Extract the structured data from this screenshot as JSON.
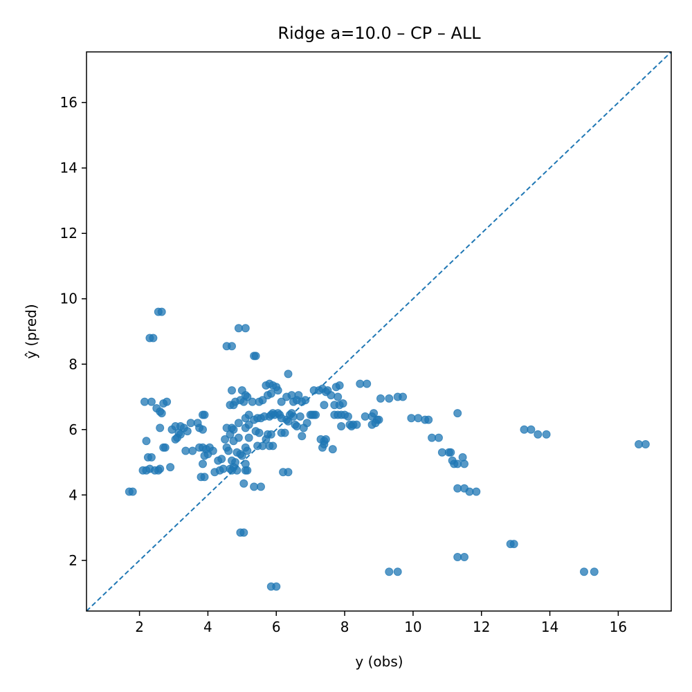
{
  "chart_data": {
    "type": "scatter",
    "title": "Ridge a=10.0 – CP – ALL",
    "xlabel": "y (obs)",
    "ylabel": "ŷ (pred)",
    "xlim": [
      0.45,
      17.55
    ],
    "ylim": [
      0.45,
      17.55
    ],
    "xticks": [
      2,
      4,
      6,
      8,
      10,
      12,
      14,
      16
    ],
    "yticks": [
      2,
      4,
      6,
      8,
      10,
      12,
      14,
      16
    ],
    "grid": false,
    "legend": "none",
    "point_color": "#1f77b4",
    "point_opacity": 0.75,
    "identity_line": {
      "style": "dashed",
      "color": "#1f77b4",
      "from": [
        0.45,
        0.45
      ],
      "to": [
        17.55,
        17.55
      ]
    },
    "points": [
      [
        1.7,
        4.1
      ],
      [
        1.8,
        4.1
      ],
      [
        2.1,
        4.75
      ],
      [
        2.2,
        4.75
      ],
      [
        2.3,
        4.8
      ],
      [
        2.45,
        4.75
      ],
      [
        2.55,
        4.75
      ],
      [
        2.6,
        4.8
      ],
      [
        2.2,
        5.65
      ],
      [
        2.25,
        5.15
      ],
      [
        2.35,
        5.15
      ],
      [
        2.15,
        6.85
      ],
      [
        2.35,
        6.85
      ],
      [
        2.5,
        6.65
      ],
      [
        2.6,
        6.55
      ],
      [
        2.65,
        6.5
      ],
      [
        2.7,
        6.8
      ],
      [
        2.8,
        6.85
      ],
      [
        2.6,
        6.05
      ],
      [
        2.7,
        5.45
      ],
      [
        2.75,
        5.45
      ],
      [
        2.9,
        4.85
      ],
      [
        2.3,
        8.8
      ],
      [
        2.4,
        8.8
      ],
      [
        2.55,
        9.6
      ],
      [
        2.65,
        9.6
      ],
      [
        2.95,
        6.0
      ],
      [
        3.05,
        5.7
      ],
      [
        3.1,
        5.75
      ],
      [
        3.15,
        5.9
      ],
      [
        3.05,
        6.1
      ],
      [
        3.2,
        6.1
      ],
      [
        3.2,
        5.85
      ],
      [
        3.3,
        6.05
      ],
      [
        3.4,
        5.95
      ],
      [
        3.35,
        5.35
      ],
      [
        3.55,
        5.35
      ],
      [
        3.5,
        6.2
      ],
      [
        3.7,
        6.2
      ],
      [
        3.75,
        6.05
      ],
      [
        3.85,
        6.0
      ],
      [
        3.75,
        5.45
      ],
      [
        3.85,
        5.45
      ],
      [
        3.95,
        5.4
      ],
      [
        4.05,
        5.45
      ],
      [
        3.9,
        5.2
      ],
      [
        4.0,
        5.25
      ],
      [
        3.85,
        4.95
      ],
      [
        4.15,
        5.35
      ],
      [
        3.8,
        4.55
      ],
      [
        3.9,
        4.55
      ],
      [
        3.85,
        6.45
      ],
      [
        3.9,
        6.45
      ],
      [
        4.2,
        4.7
      ],
      [
        4.35,
        4.75
      ],
      [
        4.3,
        5.05
      ],
      [
        4.4,
        5.1
      ],
      [
        4.45,
        4.8
      ],
      [
        4.5,
        5.7
      ],
      [
        4.55,
        6.05
      ],
      [
        4.55,
        5.45
      ],
      [
        4.6,
        5.35
      ],
      [
        4.7,
        5.05
      ],
      [
        4.8,
        5.0
      ],
      [
        4.65,
        4.8
      ],
      [
        4.75,
        4.85
      ],
      [
        4.85,
        4.75
      ],
      [
        4.7,
        4.75
      ],
      [
        4.85,
        5.3
      ],
      [
        4.95,
        5.25
      ],
      [
        4.75,
        5.65
      ],
      [
        4.9,
        5.75
      ],
      [
        4.65,
        5.85
      ],
      [
        4.7,
        6.05
      ],
      [
        4.75,
        6.0
      ],
      [
        4.65,
        6.75
      ],
      [
        4.75,
        6.75
      ],
      [
        4.8,
        6.85
      ],
      [
        4.95,
        6.9
      ],
      [
        4.7,
        7.2
      ],
      [
        5.0,
        7.2
      ],
      [
        4.9,
        6.2
      ],
      [
        4.55,
        8.55
      ],
      [
        4.7,
        8.55
      ],
      [
        4.9,
        9.1
      ],
      [
        5.1,
        9.1
      ],
      [
        4.95,
        2.85
      ],
      [
        5.05,
        2.85
      ],
      [
        5.05,
        4.35
      ],
      [
        5.1,
        4.75
      ],
      [
        5.15,
        4.75
      ],
      [
        5.1,
        4.95
      ],
      [
        5.0,
        5.2
      ],
      [
        5.1,
        5.45
      ],
      [
        5.15,
        5.35
      ],
      [
        5.2,
        5.75
      ],
      [
        5.1,
        6.05
      ],
      [
        5.2,
        6.15
      ],
      [
        5.1,
        6.35
      ],
      [
        5.2,
        6.45
      ],
      [
        5.05,
        6.85
      ],
      [
        5.1,
        7.05
      ],
      [
        5.15,
        7.0
      ],
      [
        5.3,
        6.85
      ],
      [
        5.35,
        6.3
      ],
      [
        5.35,
        8.25
      ],
      [
        5.4,
        8.25
      ],
      [
        5.35,
        4.25
      ],
      [
        5.55,
        4.25
      ],
      [
        5.45,
        5.5
      ],
      [
        5.6,
        5.5
      ],
      [
        5.4,
        5.95
      ],
      [
        5.5,
        5.9
      ],
      [
        5.45,
        6.35
      ],
      [
        5.55,
        6.35
      ],
      [
        5.65,
        6.4
      ],
      [
        5.5,
        6.85
      ],
      [
        5.6,
        6.9
      ],
      [
        5.7,
        5.7
      ],
      [
        5.75,
        5.85
      ],
      [
        5.85,
        5.85
      ],
      [
        5.8,
        5.5
      ],
      [
        5.9,
        5.5
      ],
      [
        5.8,
        6.4
      ],
      [
        5.85,
        6.45
      ],
      [
        5.9,
        6.5
      ],
      [
        5.75,
        7.05
      ],
      [
        5.85,
        7.1
      ],
      [
        5.7,
        7.35
      ],
      [
        5.8,
        7.4
      ],
      [
        5.9,
        7.35
      ],
      [
        6.0,
        7.3
      ],
      [
        6.05,
        7.2
      ],
      [
        5.85,
        1.2
      ],
      [
        6.0,
        1.2
      ],
      [
        5.95,
        6.45
      ],
      [
        6.05,
        6.5
      ],
      [
        6.1,
        6.45
      ],
      [
        6.15,
        6.35
      ],
      [
        6.15,
        5.9
      ],
      [
        6.25,
        5.9
      ],
      [
        6.15,
        6.85
      ],
      [
        6.3,
        7.0
      ],
      [
        6.2,
        4.7
      ],
      [
        6.35,
        4.7
      ],
      [
        6.3,
        6.3
      ],
      [
        6.35,
        6.25
      ],
      [
        6.4,
        6.45
      ],
      [
        6.45,
        6.5
      ],
      [
        6.35,
        7.7
      ],
      [
        6.5,
        6.4
      ],
      [
        6.55,
        6.15
      ],
      [
        6.6,
        6.1
      ],
      [
        6.5,
        6.85
      ],
      [
        6.6,
        6.9
      ],
      [
        6.45,
        7.05
      ],
      [
        6.65,
        7.05
      ],
      [
        6.7,
        6.4
      ],
      [
        6.75,
        5.8
      ],
      [
        6.8,
        6.05
      ],
      [
        6.75,
        6.85
      ],
      [
        6.85,
        6.9
      ],
      [
        6.9,
        6.2
      ],
      [
        7.0,
        6.45
      ],
      [
        7.05,
        6.45
      ],
      [
        7.1,
        6.45
      ],
      [
        7.15,
        6.45
      ],
      [
        7.1,
        7.2
      ],
      [
        7.25,
        7.2
      ],
      [
        7.3,
        5.7
      ],
      [
        7.4,
        5.65
      ],
      [
        7.35,
        7.25
      ],
      [
        7.45,
        7.15
      ],
      [
        7.35,
        5.45
      ],
      [
        7.4,
        5.55
      ],
      [
        7.45,
        5.7
      ],
      [
        7.5,
        7.2
      ],
      [
        7.4,
        6.75
      ],
      [
        7.6,
        7.05
      ],
      [
        7.65,
        5.4
      ],
      [
        7.7,
        6.45
      ],
      [
        7.8,
        6.45
      ],
      [
        7.85,
        6.75
      ],
      [
        7.9,
        6.45
      ],
      [
        7.7,
        6.75
      ],
      [
        7.8,
        7.0
      ],
      [
        7.75,
        7.3
      ],
      [
        7.85,
        7.35
      ],
      [
        7.9,
        6.1
      ],
      [
        7.95,
        6.8
      ],
      [
        8.0,
        6.45
      ],
      [
        8.1,
        6.4
      ],
      [
        8.15,
        6.15
      ],
      [
        8.2,
        6.1
      ],
      [
        8.25,
        6.15
      ],
      [
        8.35,
        6.15
      ],
      [
        8.45,
        7.4
      ],
      [
        8.65,
        7.4
      ],
      [
        8.6,
        6.4
      ],
      [
        8.8,
        6.4
      ],
      [
        8.8,
        6.15
      ],
      [
        8.85,
        6.5
      ],
      [
        8.9,
        6.2
      ],
      [
        8.95,
        6.3
      ],
      [
        9.0,
        6.3
      ],
      [
        9.05,
        6.95
      ],
      [
        9.3,
        6.95
      ],
      [
        9.3,
        1.65
      ],
      [
        9.55,
        1.65
      ],
      [
        9.55,
        7.0
      ],
      [
        9.7,
        7.0
      ],
      [
        9.95,
        6.35
      ],
      [
        10.15,
        6.35
      ],
      [
        10.35,
        6.3
      ],
      [
        10.45,
        6.3
      ],
      [
        10.55,
        5.75
      ],
      [
        10.75,
        5.75
      ],
      [
        10.85,
        5.3
      ],
      [
        11.05,
        5.3
      ],
      [
        11.1,
        5.3
      ],
      [
        11.15,
        5.05
      ],
      [
        11.2,
        4.95
      ],
      [
        11.3,
        4.95
      ],
      [
        11.3,
        4.2
      ],
      [
        11.3,
        6.5
      ],
      [
        11.3,
        2.1
      ],
      [
        11.5,
        2.1
      ],
      [
        11.45,
        5.15
      ],
      [
        11.5,
        4.95
      ],
      [
        11.5,
        4.2
      ],
      [
        11.65,
        4.1
      ],
      [
        11.85,
        4.1
      ],
      [
        12.85,
        2.5
      ],
      [
        12.95,
        2.5
      ],
      [
        13.25,
        6.0
      ],
      [
        13.45,
        6.0
      ],
      [
        13.65,
        5.85
      ],
      [
        13.9,
        5.85
      ],
      [
        15.0,
        1.65
      ],
      [
        15.3,
        1.65
      ],
      [
        16.6,
        5.55
      ],
      [
        16.8,
        5.55
      ]
    ]
  }
}
